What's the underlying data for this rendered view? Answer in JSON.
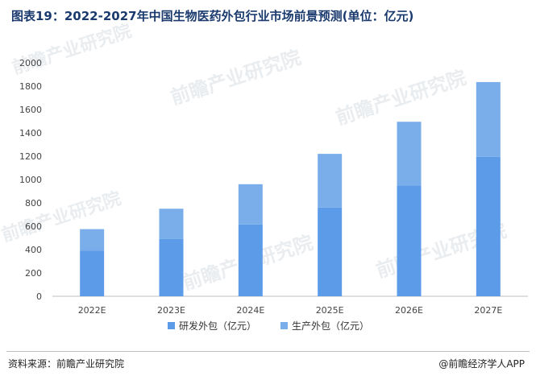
{
  "title": "图表19：2022-2027年中国生物医药外包行业市场前景预测(单位：亿元)",
  "source": "资料来源：前瞻产业研究院",
  "credit": "@前瞻经济学人APP",
  "watermark": "前瞻产业研究院",
  "chart_data": {
    "type": "bar",
    "stacked": true,
    "title": "图表19：2022-2027年中国生物医药外包行业市场前景预测(单位：亿元)",
    "xlabel": "",
    "ylabel": "",
    "unit": "亿元",
    "categories": [
      "2022E",
      "2023E",
      "2024E",
      "2025E",
      "2026E",
      "2027E"
    ],
    "ylim": [
      0,
      2000
    ],
    "yticks": [
      0,
      200,
      400,
      600,
      800,
      1000,
      1200,
      1400,
      1600,
      1800,
      2000
    ],
    "grid": false,
    "legend": "bottom",
    "series": [
      {
        "name": "研发外包（亿元）",
        "color": "#5b9be8",
        "values": [
          390,
          490,
          615,
          760,
          950,
          1195
        ]
      },
      {
        "name": "生产外包（亿元）",
        "color": "#7aaeeb",
        "values": [
          185,
          260,
          345,
          460,
          545,
          640
        ]
      }
    ]
  }
}
